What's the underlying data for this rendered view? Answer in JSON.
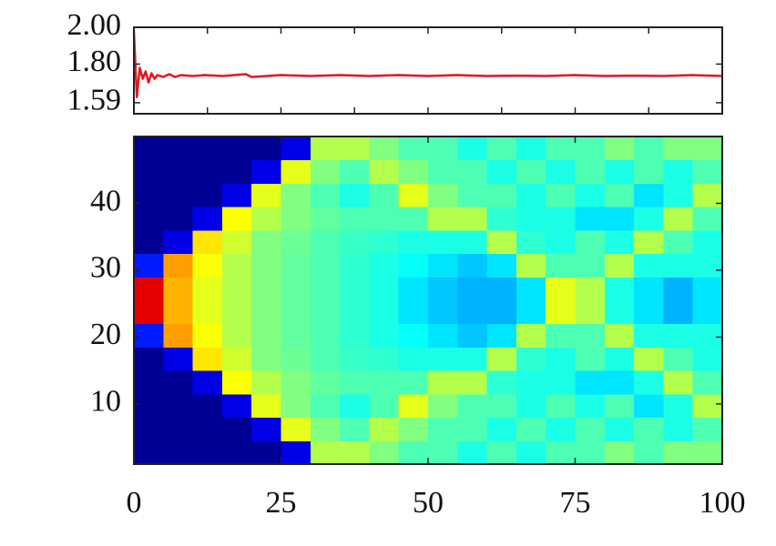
{
  "chart_data": [
    {
      "type": "line",
      "xlim": [
        0,
        100
      ],
      "xticks": [
        0,
        12.5,
        25,
        37.5,
        50,
        62.5,
        75,
        87.5,
        100
      ],
      "ylim": [
        1.53,
        2.0
      ],
      "yticks": [
        {
          "value": 2.0,
          "label": "2.00"
        },
        {
          "value": 1.8,
          "label": "1.80"
        },
        1.59
      ],
      "x": [
        0,
        0.5,
        1,
        1.5,
        2,
        2.5,
        3,
        3.5,
        4,
        5,
        6,
        7,
        8,
        10,
        12,
        15,
        19,
        20,
        25,
        30,
        35,
        40,
        45,
        50,
        55,
        60,
        65,
        70,
        75,
        80,
        85,
        90,
        95,
        100
      ],
      "series": [
        {
          "color": "#e8141c",
          "values": [
            1.98,
            1.62,
            1.78,
            1.72,
            1.76,
            1.7,
            1.75,
            1.72,
            1.74,
            1.73,
            1.745,
            1.73,
            1.74,
            1.735,
            1.74,
            1.735,
            1.745,
            1.73,
            1.74,
            1.735,
            1.74,
            1.735,
            1.74,
            1.735,
            1.74,
            1.735,
            1.737,
            1.735,
            1.74,
            1.735,
            1.737,
            1.735,
            1.74,
            1.735
          ]
        }
      ]
    },
    {
      "type": "heatmap",
      "colormap": "jet",
      "zlim": [
        0,
        1
      ],
      "xlim": [
        0,
        100
      ],
      "xticks": [
        0,
        25,
        50,
        75,
        100
      ],
      "ylim": [
        1,
        50
      ],
      "yticks": [
        10,
        20,
        30,
        40
      ],
      "x_bins": [
        0,
        5,
        10,
        15,
        20,
        25,
        30,
        35,
        40,
        45,
        50,
        55,
        60,
        65,
        70,
        75,
        80,
        85,
        90,
        95,
        100
      ],
      "y_bins": [
        1,
        4.5,
        8,
        11.5,
        15,
        18.5,
        22,
        25.5,
        29,
        32.5,
        36,
        39.5,
        43,
        46.5,
        50
      ],
      "values": [
        [
          0.02,
          0.02,
          0.02,
          0.02,
          0.02,
          0.1,
          0.55,
          0.55,
          0.5,
          0.45,
          0.45,
          0.4,
          0.45,
          0.4,
          0.45,
          0.45,
          0.5,
          0.45,
          0.5,
          0.5
        ],
        [
          0.02,
          0.02,
          0.02,
          0.02,
          0.1,
          0.6,
          0.5,
          0.45,
          0.55,
          0.5,
          0.45,
          0.45,
          0.4,
          0.45,
          0.4,
          0.45,
          0.4,
          0.45,
          0.4,
          0.45
        ],
        [
          0.02,
          0.02,
          0.02,
          0.1,
          0.6,
          0.5,
          0.45,
          0.4,
          0.45,
          0.6,
          0.5,
          0.45,
          0.45,
          0.4,
          0.45,
          0.4,
          0.45,
          0.35,
          0.4,
          0.55
        ],
        [
          0.02,
          0.02,
          0.1,
          0.62,
          0.55,
          0.5,
          0.47,
          0.45,
          0.45,
          0.45,
          0.55,
          0.55,
          0.42,
          0.4,
          0.4,
          0.35,
          0.35,
          0.4,
          0.55,
          0.45
        ],
        [
          0.02,
          0.1,
          0.65,
          0.58,
          0.5,
          0.48,
          0.45,
          0.43,
          0.42,
          0.4,
          0.4,
          0.4,
          0.55,
          0.42,
          0.4,
          0.45,
          0.4,
          0.55,
          0.45,
          0.4
        ],
        [
          0.15,
          0.72,
          0.62,
          0.55,
          0.5,
          0.47,
          0.45,
          0.42,
          0.4,
          0.38,
          0.35,
          0.32,
          0.35,
          0.55,
          0.45,
          0.45,
          0.55,
          0.4,
          0.4,
          0.4
        ],
        [
          0.9,
          0.7,
          0.6,
          0.55,
          0.5,
          0.47,
          0.45,
          0.42,
          0.4,
          0.35,
          0.32,
          0.3,
          0.3,
          0.35,
          0.6,
          0.55,
          0.4,
          0.35,
          0.3,
          0.35
        ],
        [
          0.9,
          0.7,
          0.6,
          0.55,
          0.5,
          0.47,
          0.45,
          0.42,
          0.4,
          0.35,
          0.32,
          0.3,
          0.3,
          0.35,
          0.6,
          0.55,
          0.4,
          0.35,
          0.3,
          0.35
        ],
        [
          0.15,
          0.72,
          0.62,
          0.55,
          0.5,
          0.47,
          0.45,
          0.42,
          0.4,
          0.38,
          0.35,
          0.32,
          0.35,
          0.55,
          0.45,
          0.45,
          0.55,
          0.4,
          0.4,
          0.4
        ],
        [
          0.02,
          0.1,
          0.65,
          0.58,
          0.5,
          0.48,
          0.45,
          0.43,
          0.42,
          0.4,
          0.4,
          0.4,
          0.55,
          0.42,
          0.4,
          0.45,
          0.4,
          0.55,
          0.45,
          0.4
        ],
        [
          0.02,
          0.02,
          0.1,
          0.62,
          0.55,
          0.5,
          0.47,
          0.45,
          0.45,
          0.45,
          0.55,
          0.55,
          0.42,
          0.4,
          0.4,
          0.35,
          0.35,
          0.4,
          0.55,
          0.45
        ],
        [
          0.02,
          0.02,
          0.02,
          0.1,
          0.6,
          0.5,
          0.45,
          0.4,
          0.45,
          0.6,
          0.5,
          0.45,
          0.45,
          0.4,
          0.45,
          0.4,
          0.45,
          0.35,
          0.4,
          0.55
        ],
        [
          0.02,
          0.02,
          0.02,
          0.02,
          0.1,
          0.6,
          0.5,
          0.45,
          0.55,
          0.5,
          0.45,
          0.45,
          0.4,
          0.45,
          0.4,
          0.45,
          0.4,
          0.45,
          0.4,
          0.45
        ],
        [
          0.02,
          0.02,
          0.02,
          0.02,
          0.02,
          0.1,
          0.55,
          0.55,
          0.5,
          0.45,
          0.45,
          0.4,
          0.45,
          0.4,
          0.45,
          0.45,
          0.5,
          0.45,
          0.5,
          0.5
        ]
      ]
    }
  ]
}
